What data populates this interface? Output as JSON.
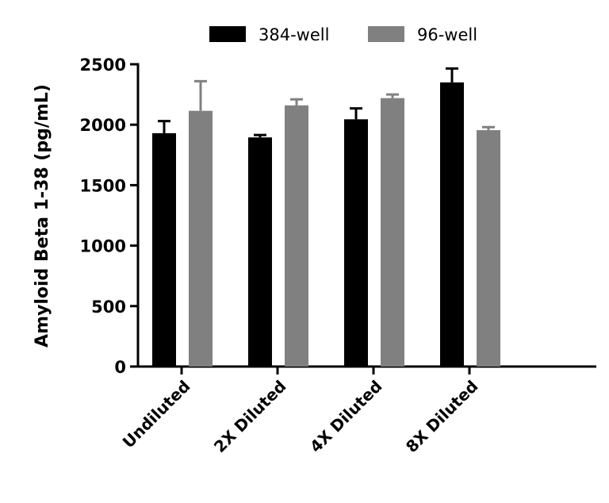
{
  "chart_data": {
    "type": "bar",
    "title": "",
    "xlabel": "",
    "ylabel": "Amyloid Beta 1-38 (pg/mL)",
    "ylim": [
      0,
      2500
    ],
    "yticks": [
      "0",
      "500",
      "1000",
      "1500",
      "2000",
      "2500"
    ],
    "categories": [
      "Undiluted",
      "2X Diluted",
      "4X Diluted",
      "8X Diluted"
    ],
    "legend_position": "top",
    "grid": false,
    "series": [
      {
        "name": "384-well",
        "color": "#000000",
        "values": [
          1930,
          1895,
          2045,
          2350
        ],
        "error_upper": [
          2030,
          1915,
          2135,
          2465
        ]
      },
      {
        "name": "96-well",
        "color": "#808080",
        "values": [
          2115,
          2160,
          2220,
          1955
        ],
        "error_upper": [
          2360,
          2210,
          2250,
          1980
        ]
      }
    ]
  }
}
